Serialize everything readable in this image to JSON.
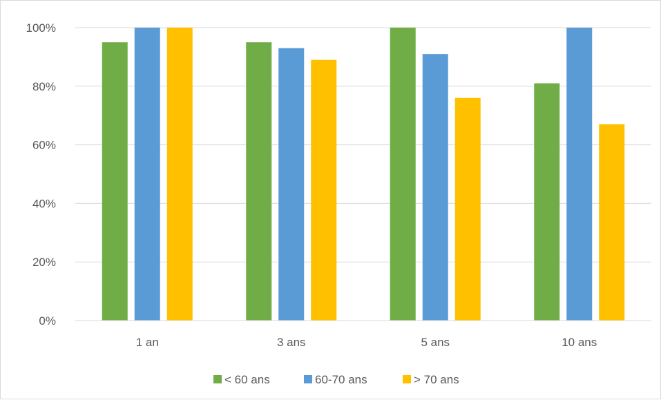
{
  "chart_data": {
    "type": "bar",
    "title": "",
    "xlabel": "",
    "ylabel": "",
    "categories": [
      "1 an",
      "3 ans",
      "5 ans",
      "10 ans"
    ],
    "series": [
      {
        "name": "< 60 ans",
        "color": "#70AD47",
        "values": [
          95,
          95,
          100,
          81
        ]
      },
      {
        "name": "60-70 ans",
        "color": "#5B9BD5",
        "values": [
          100,
          93,
          91,
          100
        ]
      },
      {
        "name": "> 70 ans",
        "color": "#FFC000",
        "values": [
          100,
          89,
          76,
          67
        ]
      }
    ],
    "ylim": [
      0,
      100
    ],
    "yticks": [
      0,
      20,
      40,
      60,
      80,
      100
    ],
    "ytick_labels": [
      "0%",
      "20%",
      "40%",
      "60%",
      "80%",
      "100%"
    ],
    "grid": true,
    "legend_position": "bottom"
  }
}
